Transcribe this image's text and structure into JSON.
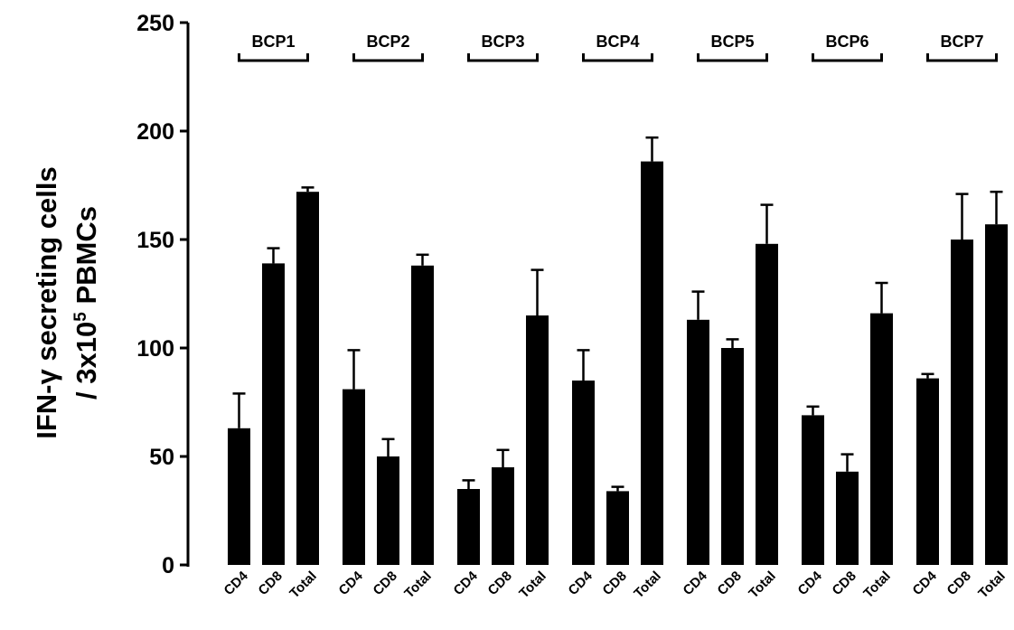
{
  "chart_data": {
    "type": "bar",
    "ylabel_line1": "IFN-γ secreting cells",
    "ylabel_line2_prefix": "/ 3x10",
    "ylabel_line2_sup": "5",
    "ylabel_line2_suffix": " PBMCs",
    "ylim": [
      0,
      250
    ],
    "yticks": [
      0,
      50,
      100,
      150,
      200,
      250
    ],
    "grid": false,
    "error_bars": "upper",
    "groups": [
      {
        "name": "BCP1",
        "bars": [
          {
            "category": "CD4",
            "value": 63,
            "error": 16
          },
          {
            "category": "CD8",
            "value": 139,
            "error": 7
          },
          {
            "category": "Total",
            "value": 172,
            "error": 2
          }
        ]
      },
      {
        "name": "BCP2",
        "bars": [
          {
            "category": "CD4",
            "value": 81,
            "error": 18
          },
          {
            "category": "CD8",
            "value": 50,
            "error": 8
          },
          {
            "category": "Total",
            "value": 138,
            "error": 5
          }
        ]
      },
      {
        "name": "BCP3",
        "bars": [
          {
            "category": "CD4",
            "value": 35,
            "error": 4
          },
          {
            "category": "CD8",
            "value": 45,
            "error": 8
          },
          {
            "category": "Total",
            "value": 115,
            "error": 21
          }
        ]
      },
      {
        "name": "BCP4",
        "bars": [
          {
            "category": "CD4",
            "value": 85,
            "error": 14
          },
          {
            "category": "CD8",
            "value": 34,
            "error": 2
          },
          {
            "category": "Total",
            "value": 186,
            "error": 11
          }
        ]
      },
      {
        "name": "BCP5",
        "bars": [
          {
            "category": "CD4",
            "value": 113,
            "error": 13
          },
          {
            "category": "CD8",
            "value": 100,
            "error": 4
          },
          {
            "category": "Total",
            "value": 148,
            "error": 18
          }
        ]
      },
      {
        "name": "BCP6",
        "bars": [
          {
            "category": "CD4",
            "value": 69,
            "error": 4
          },
          {
            "category": "CD8",
            "value": 43,
            "error": 8
          },
          {
            "category": "Total",
            "value": 116,
            "error": 14
          }
        ]
      },
      {
        "name": "BCP7",
        "bars": [
          {
            "category": "CD4",
            "value": 86,
            "error": 2
          },
          {
            "category": "CD8",
            "value": 150,
            "error": 21
          },
          {
            "category": "Total",
            "value": 157,
            "error": 15
          }
        ]
      }
    ],
    "colors": {
      "bar": "#000000",
      "axis": "#000000"
    }
  }
}
